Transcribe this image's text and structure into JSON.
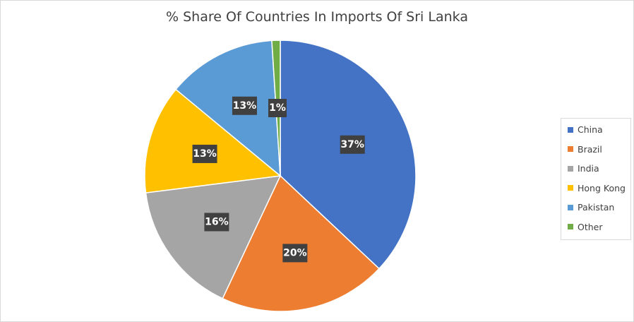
{
  "title": "% Share Of Countries In Imports Of Sri Lanka",
  "chart_data": {
    "type": "pie",
    "title": "% Share Of Countries In Imports Of Sri Lanka",
    "categories": [
      "China",
      "Brazil",
      "India",
      "Hong Kong",
      "Pakistan",
      "Other"
    ],
    "values": [
      37,
      20,
      16,
      13,
      13,
      1
    ],
    "labels": [
      "37%",
      "20%",
      "16%",
      "13%",
      "13%",
      "1%"
    ],
    "colors": [
      "#4472C4",
      "#ED7D31",
      "#A5A5A5",
      "#FFC000",
      "#5B9BD5",
      "#70AD47"
    ],
    "legend_position": "right",
    "data_labels": "percent"
  }
}
